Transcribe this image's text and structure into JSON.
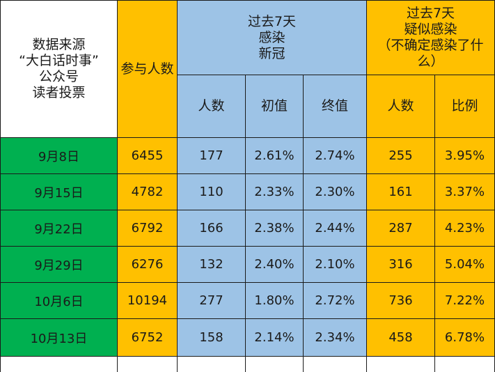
{
  "header": {
    "source": [
      "数据来源",
      "“大白话时事”",
      "公众号",
      "读者投票"
    ],
    "participants": "参与人数",
    "covid_group": [
      "过去7天",
      "感染",
      "新冠"
    ],
    "suspected_group": [
      "过去7天",
      "疑似感染",
      "（不确定感染了什",
      "么）"
    ],
    "sub": {
      "count": "人数",
      "initial": "初值",
      "final": "终值",
      "suspected_count": "人数",
      "ratio": "比例"
    }
  },
  "rows": [
    {
      "date": "9月8日",
      "participants": "6455",
      "covid_count": "177",
      "initial": "2.61%",
      "final": "2.74%",
      "suspected_count": "255",
      "ratio": "3.95%"
    },
    {
      "date": "9月15日",
      "participants": "4782",
      "covid_count": "110",
      "initial": "2.33%",
      "final": "2.30%",
      "suspected_count": "161",
      "ratio": "3.37%"
    },
    {
      "date": "9月22日",
      "participants": "6792",
      "covid_count": "166",
      "initial": "2.38%",
      "final": "2.44%",
      "suspected_count": "287",
      "ratio": "4.23%"
    },
    {
      "date": "9月29日",
      "participants": "6276",
      "covid_count": "132",
      "initial": "2.40%",
      "final": "2.10%",
      "suspected_count": "316",
      "ratio": "5.04%"
    },
    {
      "date": "10月6日",
      "participants": "10194",
      "covid_count": "277",
      "initial": "1.80%",
      "final": "2.72%",
      "suspected_count": "736",
      "ratio": "7.22%"
    },
    {
      "date": "10月13日",
      "participants": "6752",
      "covid_count": "158",
      "initial": "2.14%",
      "final": "2.34%",
      "suspected_count": "458",
      "ratio": "6.78%"
    }
  ]
}
